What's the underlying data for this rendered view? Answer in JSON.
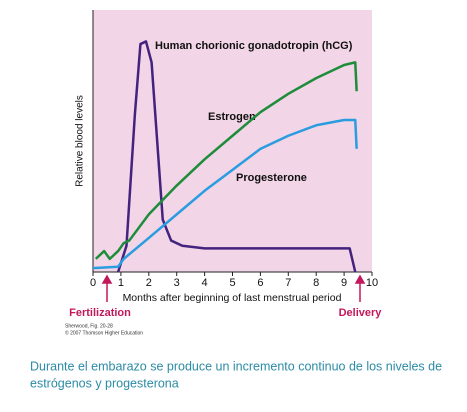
{
  "chart_data": {
    "type": "line",
    "ylabel": "Relative blood levels",
    "xlabel": "Months after beginning of last menstrual period",
    "xlim": [
      0,
      10
    ],
    "xticks": [
      0,
      1,
      2,
      3,
      4,
      5,
      6,
      7,
      8,
      9,
      10
    ],
    "ylim": [
      0,
      100
    ],
    "background": "#f2d5e6",
    "series": [
      {
        "name": "Human chorionic gonadotropin (hCG)",
        "color": "#44237f",
        "x": [
          0.9,
          1.2,
          1.5,
          1.7,
          1.9,
          2.1,
          2.3,
          2.5,
          2.8,
          3.2,
          4,
          6,
          8,
          9.2,
          9.4
        ],
        "values": [
          0,
          10,
          60,
          87,
          88,
          80,
          50,
          20,
          12,
          10,
          9,
          9,
          9,
          9,
          0
        ]
      },
      {
        "name": "Estrogen",
        "color": "#1e8c3a",
        "x": [
          0.1,
          0.4,
          0.6,
          0.9,
          1.1,
          1.3,
          2,
          3,
          4,
          5,
          6,
          7,
          8,
          9,
          9.4,
          9.45
        ],
        "values": [
          5,
          8,
          5,
          8,
          11,
          12,
          22,
          33,
          43,
          52,
          61,
          68,
          74,
          79,
          80,
          69
        ]
      },
      {
        "name": "Progesterone",
        "color": "#2a9de0",
        "x": [
          0,
          0.9,
          1.1,
          2,
          3,
          4,
          5,
          6,
          7,
          8,
          9,
          9.4,
          9.45
        ],
        "values": [
          1.5,
          2,
          5,
          13,
          22,
          31,
          39,
          47,
          52,
          56,
          58,
          58,
          47
        ]
      }
    ],
    "markers": [
      "Fertilization",
      "Delivery"
    ],
    "credit": [
      "Sherwood, Fig. 20-28",
      "© 2007 Thomson Higher Education"
    ]
  },
  "caption": [
    "Durante el embarazo se produce un incremento continuo de los niveles de",
    "estrógenos y progesterona"
  ]
}
